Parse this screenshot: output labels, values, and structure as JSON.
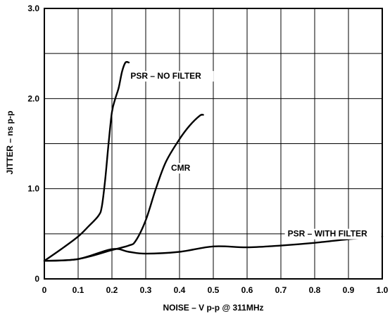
{
  "chart_data": {
    "type": "line",
    "title": "",
    "xlabel": "NOISE – V p-p @ 311MHz",
    "ylabel": "JITTER – ns p-p",
    "xlim": [
      0,
      1.0
    ],
    "ylim": [
      0,
      3.0
    ],
    "grid": true,
    "x_ticks": [
      0,
      0.1,
      0.2,
      0.3,
      0.4,
      0.5,
      0.6,
      0.7,
      0.8,
      0.9,
      1.0
    ],
    "x_tick_labels": [
      "0",
      "0.1",
      "0.2",
      "0.3",
      "0.4",
      "0.5",
      "0.6",
      "0.7",
      "0.8",
      "0.9",
      "1.0"
    ],
    "y_ticks": [
      0,
      1.0,
      2.0,
      3.0
    ],
    "y_tick_labels": [
      "0",
      "1.0",
      "2.0",
      "3.0"
    ],
    "series": [
      {
        "name": "PSR – NO FILTER",
        "x": [
          0,
          0.05,
          0.1,
          0.13,
          0.16,
          0.17,
          0.18,
          0.19,
          0.2,
          0.21,
          0.22,
          0.23,
          0.24,
          0.25
        ],
        "y": [
          0.2,
          0.33,
          0.47,
          0.58,
          0.7,
          0.8,
          1.1,
          1.5,
          1.85,
          2.0,
          2.12,
          2.3,
          2.4,
          2.4
        ]
      },
      {
        "name": "CMR",
        "x": [
          0,
          0.1,
          0.2,
          0.25,
          0.27,
          0.3,
          0.33,
          0.36,
          0.4,
          0.43,
          0.46,
          0.47
        ],
        "y": [
          0.2,
          0.22,
          0.32,
          0.37,
          0.42,
          0.65,
          1.0,
          1.3,
          1.55,
          1.7,
          1.81,
          1.82
        ]
      },
      {
        "name": "PSR – WITH FILTER",
        "x": [
          0,
          0.1,
          0.2,
          0.25,
          0.3,
          0.4,
          0.5,
          0.6,
          0.7,
          0.8,
          0.9,
          1.0
        ],
        "y": [
          0.2,
          0.22,
          0.33,
          0.3,
          0.28,
          0.3,
          0.36,
          0.35,
          0.37,
          0.4,
          0.44,
          0.47
        ]
      }
    ],
    "series_labels": [
      {
        "text": "PSR – NO FILTER",
        "x": 0.255,
        "y": 2.22
      },
      {
        "text": "CMR",
        "x": 0.375,
        "y": 1.2
      },
      {
        "text": "PSR – WITH FILTER",
        "x": 0.72,
        "y": 0.47
      }
    ]
  }
}
